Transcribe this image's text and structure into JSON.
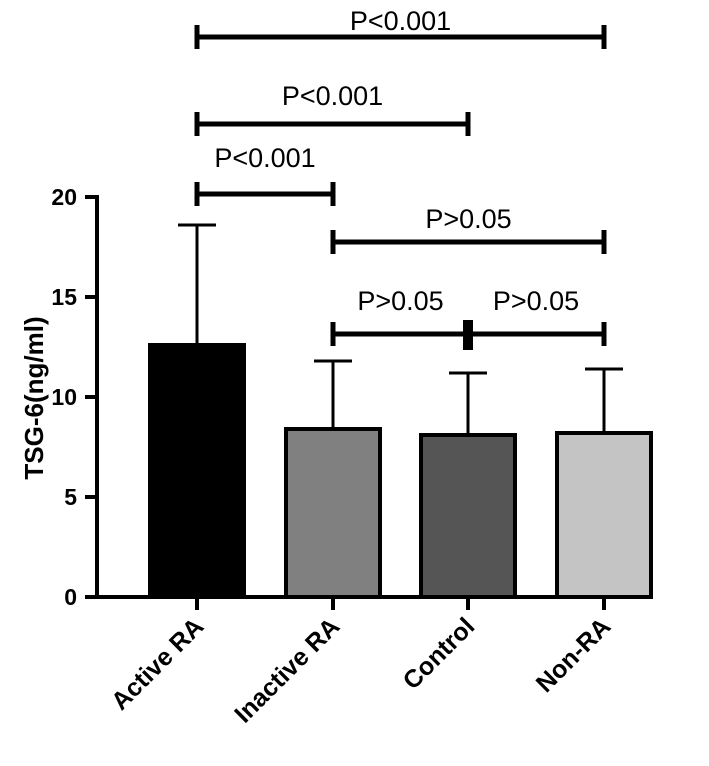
{
  "chart_data": {
    "type": "bar",
    "title": "",
    "xlabel": "",
    "ylabel": "TSG-6(ng/ml)",
    "ylim": [
      0,
      20
    ],
    "yticks": [
      0,
      5,
      10,
      15,
      20
    ],
    "categories": [
      "Active RA",
      "Inactive RA",
      "Control",
      "Non-RA"
    ],
    "values": [
      12.6,
      8.4,
      8.1,
      8.2
    ],
    "error_upper": [
      18.6,
      11.8,
      11.2,
      11.4
    ],
    "bar_colors": [
      "#000000",
      "#808080",
      "#555555",
      "#c4c4c4"
    ],
    "comparisons": [
      {
        "from": "Active RA",
        "to": "Non-RA",
        "label": "P<0.001"
      },
      {
        "from": "Active RA",
        "to": "Control",
        "label": "P<0.001"
      },
      {
        "from": "Active RA",
        "to": "Inactive RA",
        "label": "P<0.001"
      },
      {
        "from": "Inactive RA",
        "to": "Non-RA",
        "label": "P>0.05"
      },
      {
        "from": "Inactive RA",
        "to": "Control",
        "label": "P>0.05"
      },
      {
        "from": "Control",
        "to": "Non-RA",
        "label": "P>0.05"
      }
    ]
  }
}
